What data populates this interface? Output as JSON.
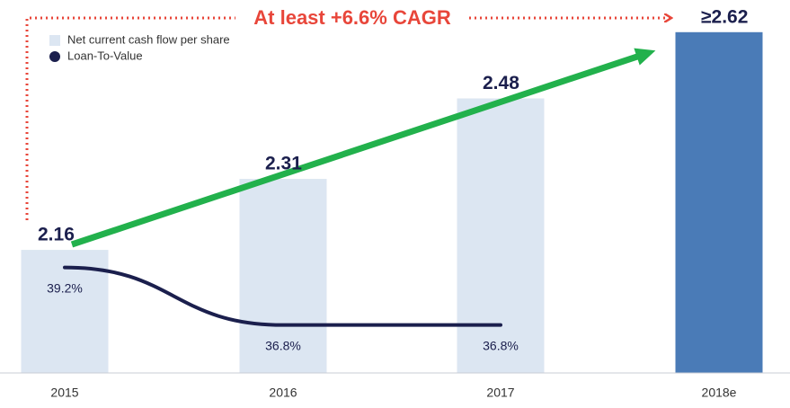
{
  "chart_data": {
    "type": "bar",
    "annotation": "At least +6.6% CAGR",
    "categories": [
      "2015",
      "2016",
      "2017",
      "2018e"
    ],
    "series": [
      {
        "name": "Net current cash flow per share",
        "type": "bar",
        "color": "#dce6f2",
        "colors": [
          "#dce6f2",
          "#dce6f2",
          "#dce6f2",
          "#4a7bb7"
        ],
        "values": [
          2.16,
          2.31,
          2.48,
          2.62
        ],
        "value_labels": [
          "2.16",
          "2.31",
          "2.48",
          "≥2.62"
        ]
      },
      {
        "name": "Loan-To-Value",
        "type": "line",
        "axis": "y2",
        "color": "#1b1f4d",
        "values": [
          39.2,
          36.8,
          36.8,
          null
        ],
        "value_labels": [
          "39.2%",
          "36.8%",
          "36.8%",
          null
        ]
      }
    ],
    "ylim": [
      1.9,
      2.65
    ],
    "y2lim": [
      34.8,
      49.6
    ],
    "legend": "upper left"
  }
}
